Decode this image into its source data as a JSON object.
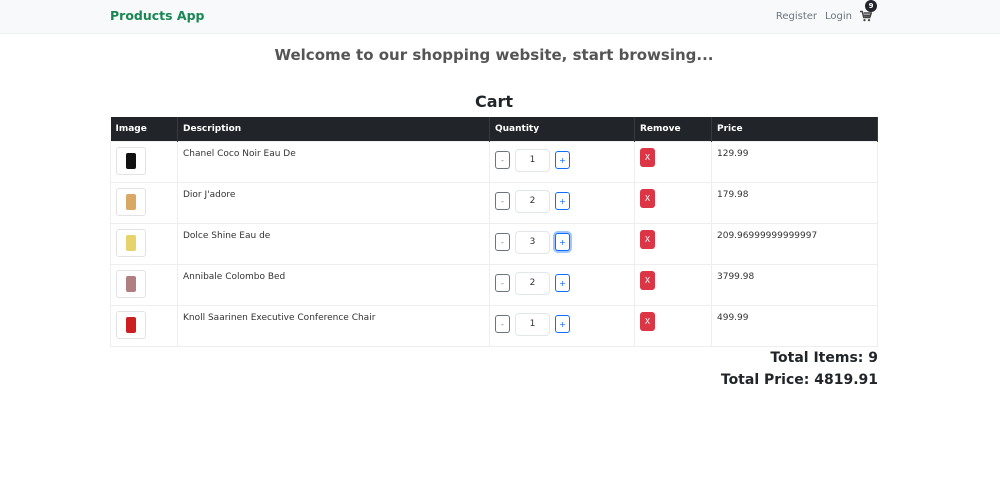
{
  "nav": {
    "brand": "Products App",
    "register": "Register",
    "login": "Login",
    "cart_icon": "cart-icon",
    "cart_count": "9"
  },
  "welcome": "Welcome to our shopping website, start browsing...",
  "cart": {
    "title": "Cart",
    "columns": [
      "Image",
      "Description",
      "Quantity",
      "Remove",
      "Price"
    ],
    "decrement_label": "-",
    "increment_label": "+",
    "remove_label": "X",
    "rows": [
      {
        "description": "Chanel Coco Noir Eau De",
        "quantity": "1",
        "price": "129.99",
        "color": "#111111"
      },
      {
        "description": "Dior J'adore",
        "quantity": "2",
        "price": "179.98",
        "color": "#d9a866"
      },
      {
        "description": "Dolce Shine Eau de",
        "quantity": "3",
        "price": "209.96999999999997",
        "color": "#e8d36a"
      },
      {
        "description": "Annibale Colombo Bed",
        "quantity": "2",
        "price": "3799.98",
        "color": "#b08080"
      },
      {
        "description": "Knoll Saarinen Executive Conference Chair",
        "quantity": "1",
        "price": "499.99",
        "color": "#cc1f1f"
      }
    ],
    "total_items": "Total Items: 9",
    "total_price": "Total Price: 4819.91"
  },
  "colors": {
    "brand": "#198754",
    "remove": "#dc3545",
    "header": "#212529"
  }
}
